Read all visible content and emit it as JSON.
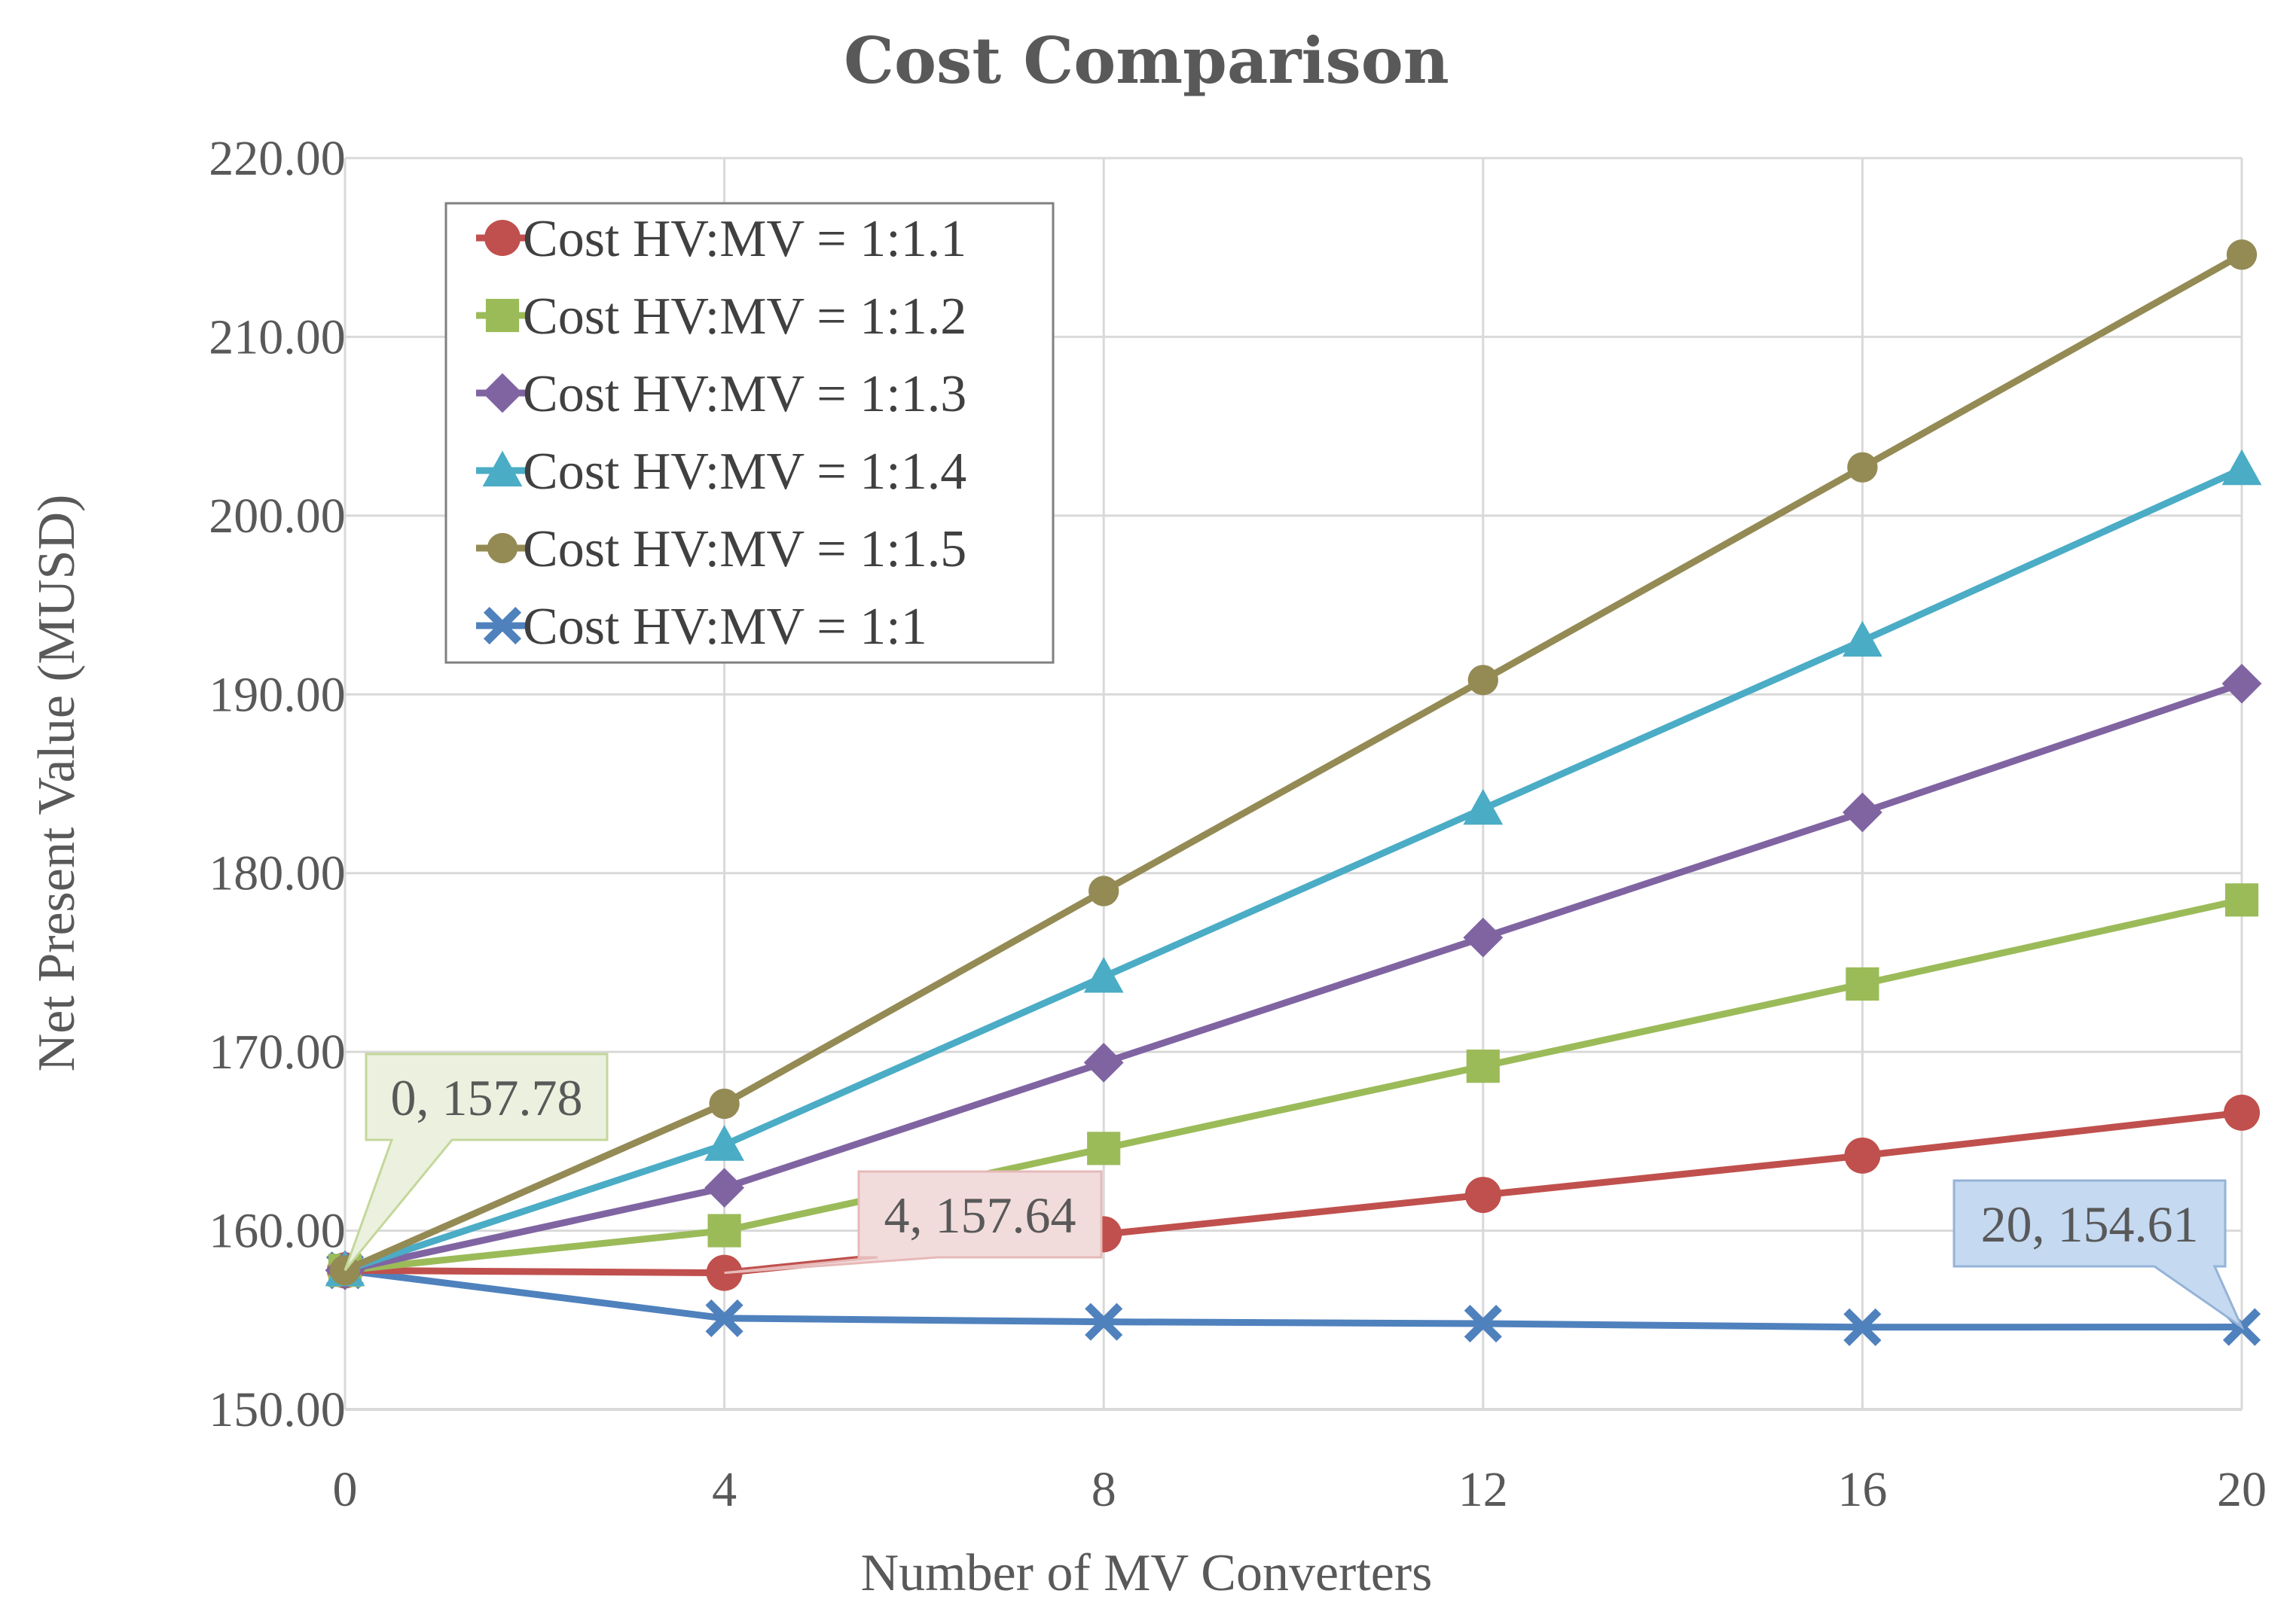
{
  "chart_data": {
    "type": "line",
    "title": "Cost Comparison",
    "xlabel": "Number of MV Converters",
    "ylabel": "Net Present Value (MUSD)",
    "x": [
      0,
      4,
      8,
      12,
      16,
      20
    ],
    "xticks": [
      "0",
      "4",
      "8",
      "12",
      "16",
      "20"
    ],
    "yticks": [
      "150.00",
      "160.00",
      "170.00",
      "180.00",
      "190.00",
      "200.00",
      "210.00",
      "220.00"
    ],
    "xlim": [
      0,
      20
    ],
    "ylim": [
      150,
      220
    ],
    "grid": true,
    "legend_position": "top-left",
    "series": [
      {
        "name": "Cost HV:MV = 1:1.1",
        "color": "#c0504d",
        "marker": "circle",
        "values": [
          157.78,
          157.64,
          159.8,
          162.0,
          164.2,
          166.6
        ]
      },
      {
        "name": "Cost HV:MV = 1:1.2",
        "color": "#9bbb59",
        "marker": "square",
        "values": [
          157.78,
          160.0,
          164.6,
          169.2,
          173.8,
          178.5
        ]
      },
      {
        "name": "Cost HV:MV = 1:1.3",
        "color": "#8064a2",
        "marker": "diamond",
        "values": [
          157.78,
          162.4,
          169.4,
          176.4,
          183.4,
          190.6
        ]
      },
      {
        "name": "Cost HV:MV = 1:1.4",
        "color": "#4bacc6",
        "marker": "triangle",
        "values": [
          157.78,
          164.8,
          174.2,
          183.6,
          193.0,
          202.6
        ]
      },
      {
        "name": "Cost HV:MV = 1:1.5",
        "color": "#948a54",
        "marker": "dot",
        "values": [
          157.78,
          167.1,
          179.0,
          190.8,
          202.7,
          214.6
        ]
      },
      {
        "name": "Cost HV:MV = 1:1",
        "color": "#4f81bd",
        "marker": "x",
        "values": [
          157.78,
          155.1,
          154.9,
          154.8,
          154.6,
          154.61
        ]
      }
    ],
    "annotations": [
      {
        "text": "0,  157.78",
        "x": 0,
        "y": 157.78,
        "fill": "#ebf1de",
        "stroke": "#c4d79b",
        "series": 5
      },
      {
        "text": "4,  157.64",
        "x": 4,
        "y": 157.64,
        "fill": "#f2dcdb",
        "stroke": "#e6b9b8",
        "series": 0
      },
      {
        "text": "20,  154.61",
        "x": 20,
        "y": 154.61,
        "fill": "#c5d9f1",
        "stroke": "#95b3d7",
        "series": 5
      }
    ]
  }
}
